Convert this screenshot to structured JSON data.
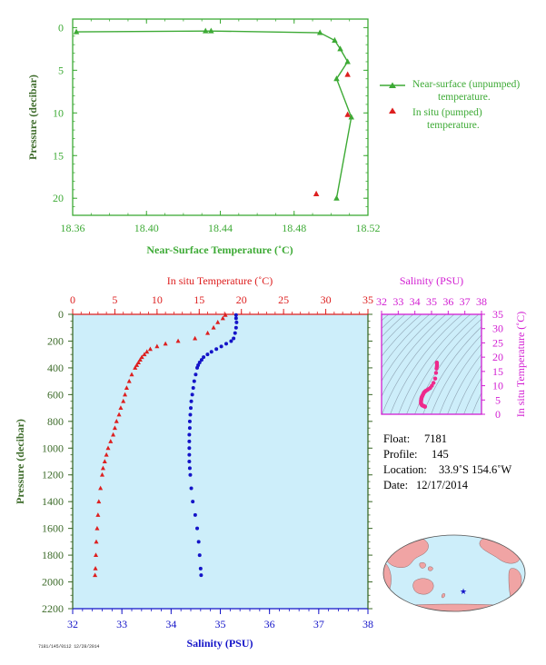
{
  "colors": {
    "green": "#3daa35",
    "red": "#dd1f1f",
    "blue": "#1414c8",
    "magenta": "#d21ed2",
    "pink_points": "#ee2a8c",
    "plot_bg": "#cdeefa",
    "land": "#f0a4a4",
    "ocean": "#cdeefa"
  },
  "info": {
    "float_label": "Float:",
    "float_value": "7181",
    "profile_label": "Profile:",
    "profile_value": "145",
    "location_label": "Location:",
    "location_value": "33.9˚S  154.6˚W",
    "date_label": "Date:",
    "date_value": "12/17/2014"
  },
  "footer_code": "7181/145/0112  12/28/2014",
  "chart_data": [
    {
      "type": "line",
      "id": "near_surface_temperature",
      "xlabel": "Near-Surface Temperature (˚C)",
      "ylabel": "Pressure (decibar)",
      "xlim": [
        18.36,
        18.52
      ],
      "ylim": [
        22,
        -1
      ],
      "xticks": [
        "18.36",
        "18.40",
        "18.44",
        "18.48",
        "18.52"
      ],
      "xtick_values": [
        18.36,
        18.4,
        18.44,
        18.48,
        18.52
      ],
      "yticks": [
        "0",
        "5",
        "10",
        "15",
        "20"
      ],
      "ytick_values": [
        0,
        5,
        10,
        15,
        20
      ],
      "legend_position": "right",
      "series": [
        {
          "name": "Near-surface (unpumped) temperature.",
          "legend_line1": "Near-surface (unpumped)",
          "legend_line2": "temperature.",
          "marker": "triangle",
          "points": [
            [
              18.362,
              0.5
            ],
            [
              18.432,
              0.4
            ],
            [
              18.435,
              0.4
            ],
            [
              18.494,
              0.6
            ],
            [
              18.502,
              1.5
            ],
            [
              18.505,
              2.5
            ],
            [
              18.509,
              4.0
            ],
            [
              18.503,
              6.0
            ],
            [
              18.511,
              10.5
            ],
            [
              18.503,
              20.0
            ]
          ]
        },
        {
          "name": "In situ (pumped) temperature.",
          "legend_line1": "In situ (pumped)",
          "legend_line2": "temperature.",
          "marker": "triangle",
          "points": [
            [
              18.509,
              5.5
            ],
            [
              18.509,
              10.2
            ],
            [
              18.492,
              19.5
            ]
          ]
        }
      ]
    },
    {
      "type": "scatter",
      "id": "profile",
      "ylabel": "Pressure (decibar)",
      "ylim": [
        2200,
        0
      ],
      "yticks": [
        "0",
        "200",
        "400",
        "600",
        "800",
        "1000",
        "1200",
        "1400",
        "1600",
        "1800",
        "2000",
        "2200"
      ],
      "ytick_values": [
        0,
        200,
        400,
        600,
        800,
        1000,
        1200,
        1400,
        1600,
        1800,
        2000,
        2200
      ],
      "top_axis": {
        "label": "In situ Temperature (˚C)",
        "xlim": [
          0,
          35
        ],
        "xticks": [
          "0",
          "5",
          "10",
          "15",
          "20",
          "25",
          "30",
          "35"
        ],
        "xtick_values": [
          0,
          5,
          10,
          15,
          20,
          25,
          30,
          35
        ]
      },
      "bottom_axis": {
        "label": "Salinity (PSU)",
        "xlim": [
          32,
          38
        ],
        "xticks": [
          "32",
          "33",
          "34",
          "35",
          "36",
          "37",
          "38"
        ],
        "xtick_values": [
          32,
          33,
          34,
          35,
          36,
          37,
          38
        ]
      },
      "temperature": {
        "pressure": [
          5,
          30,
          60,
          100,
          140,
          180,
          200,
          220,
          240,
          260,
          280,
          300,
          320,
          340,
          360,
          380,
          400,
          450,
          500,
          550,
          600,
          650,
          700,
          750,
          800,
          850,
          900,
          950,
          1000,
          1050,
          1100,
          1150,
          1200,
          1300,
          1400,
          1500,
          1600,
          1700,
          1800,
          1900,
          1950
        ],
        "values": [
          18.1,
          17.8,
          17.2,
          16.7,
          16.0,
          14.5,
          12.5,
          11.0,
          10.0,
          9.2,
          8.8,
          8.5,
          8.2,
          8.0,
          7.8,
          7.6,
          7.4,
          7.0,
          6.7,
          6.4,
          6.2,
          6.0,
          5.7,
          5.5,
          5.2,
          5.0,
          4.8,
          4.5,
          4.2,
          4.0,
          3.8,
          3.6,
          3.5,
          3.3,
          3.1,
          3.0,
          2.9,
          2.8,
          2.75,
          2.7,
          2.65
        ]
      },
      "salinity": {
        "pressure": [
          5,
          30,
          60,
          100,
          140,
          180,
          200,
          220,
          240,
          260,
          280,
          300,
          320,
          340,
          360,
          380,
          400,
          450,
          500,
          550,
          600,
          650,
          700,
          750,
          800,
          850,
          900,
          950,
          1000,
          1050,
          1100,
          1150,
          1200,
          1300,
          1400,
          1500,
          1600,
          1700,
          1800,
          1900,
          1950
        ],
        "values": [
          35.32,
          35.32,
          35.33,
          35.32,
          35.3,
          35.27,
          35.22,
          35.12,
          35.02,
          34.92,
          34.82,
          34.74,
          34.66,
          34.62,
          34.58,
          34.55,
          34.53,
          34.5,
          34.47,
          34.45,
          34.43,
          34.41,
          34.4,
          34.39,
          34.38,
          34.38,
          34.37,
          34.37,
          34.37,
          34.37,
          34.37,
          34.38,
          34.39,
          34.41,
          34.44,
          34.49,
          34.53,
          34.56,
          34.58,
          34.6,
          34.61
        ]
      }
    },
    {
      "type": "scatter",
      "id": "ts_diagram",
      "title": "Salinity (PSU)",
      "ylabel": "In situ Temperature (˚C)",
      "xlim": [
        32,
        38
      ],
      "ylim": [
        0,
        35
      ],
      "xticks": [
        "32",
        "33",
        "34",
        "35",
        "36",
        "37",
        "38"
      ],
      "xtick_values": [
        32,
        33,
        34,
        35,
        36,
        37,
        38
      ],
      "yticks": [
        "0",
        "5",
        "10",
        "15",
        "20",
        "25",
        "30",
        "35"
      ],
      "ytick_values": [
        0,
        5,
        10,
        15,
        20,
        25,
        30,
        35
      ],
      "points_salinity": [
        35.32,
        35.32,
        35.33,
        35.32,
        35.3,
        35.27,
        35.22,
        35.12,
        35.02,
        34.92,
        34.82,
        34.74,
        34.66,
        34.62,
        34.58,
        34.55,
        34.53,
        34.5,
        34.47,
        34.45,
        34.43,
        34.41,
        34.4,
        34.39,
        34.38,
        34.38,
        34.37,
        34.37,
        34.37,
        34.37,
        34.37,
        34.38,
        34.39,
        34.41,
        34.44,
        34.49,
        34.53,
        34.56,
        34.58,
        34.6,
        34.61
      ],
      "points_temperature": [
        18.1,
        17.8,
        17.2,
        16.7,
        16.0,
        14.5,
        12.5,
        11.0,
        10.0,
        9.2,
        8.8,
        8.5,
        8.2,
        8.0,
        7.8,
        7.6,
        7.4,
        7.0,
        6.7,
        6.4,
        6.2,
        6.0,
        5.7,
        5.5,
        5.2,
        5.0,
        4.8,
        4.5,
        4.2,
        4.0,
        3.8,
        3.6,
        3.5,
        3.3,
        3.1,
        3.0,
        2.9,
        2.8,
        2.75,
        2.7,
        2.65
      ]
    }
  ],
  "map": {
    "type": "world-map-pacific-centered",
    "marker": "blue-star",
    "float_lat": -33.9,
    "float_lon": -154.6
  }
}
